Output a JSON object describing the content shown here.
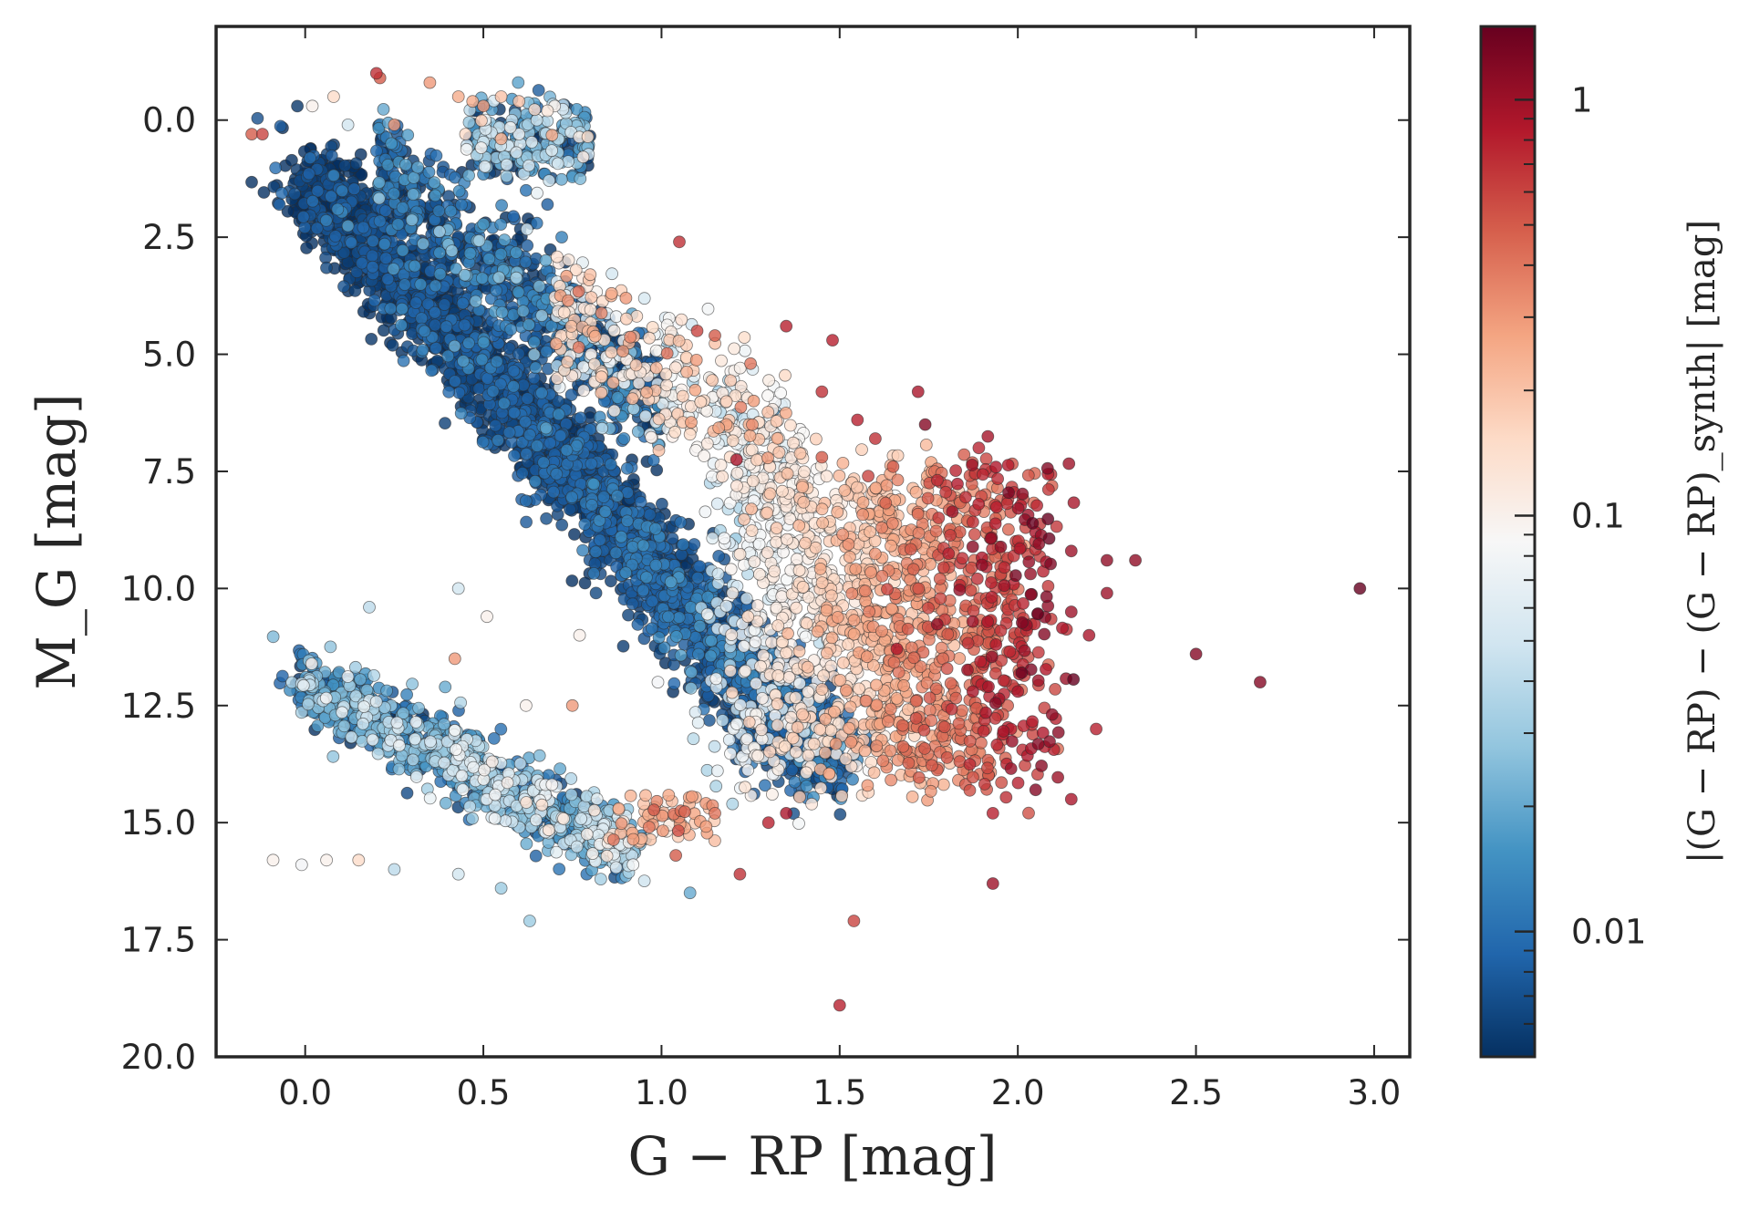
{
  "chart_data": {
    "type": "scatter",
    "title": "",
    "xlabel": "G − RP [mag]",
    "ylabel": "M_G [mag]",
    "xlim": [
      -0.25,
      3.1
    ],
    "ylim": [
      20.0,
      -2.0
    ],
    "y_inverted": true,
    "grid": false,
    "x_ticks": [
      "0.0",
      "0.5",
      "1.0",
      "1.5",
      "2.0",
      "2.5",
      "3.0"
    ],
    "y_ticks": [
      "0.0",
      "2.5",
      "5.0",
      "7.5",
      "10.0",
      "12.5",
      "15.0",
      "17.5",
      "20.0"
    ],
    "colorbar": {
      "label": "|(G − RP) − (G − RP)_synth| [mag]",
      "scale": "log",
      "range": [
        0.005,
        1.5
      ],
      "ticks": [
        "0.01",
        "0.1",
        "1"
      ],
      "colormap": "RdBu_r",
      "colors": [
        "#053061",
        "#2166ac",
        "#4393c3",
        "#92c5de",
        "#d1e5f0",
        "#f7f7f7",
        "#fddbc7",
        "#f4a582",
        "#d6604d",
        "#b2182b",
        "#67001f"
      ]
    },
    "series": [
      {
        "description_points": "representative [G-RP, M_G, |Δcolor|] samples",
        "points": [
          [
            -0.15,
            0.3,
            0.5
          ],
          [
            -0.12,
            0.3,
            0.6
          ],
          [
            0.2,
            -1.0,
            0.7
          ],
          [
            0.21,
            -0.9,
            0.5
          ],
          [
            0.35,
            -0.8,
            0.3
          ],
          [
            0.43,
            -0.5,
            0.25
          ],
          [
            0.47,
            -0.4,
            0.25
          ],
          [
            0.5,
            -0.3,
            0.3
          ],
          [
            0.55,
            -0.5,
            0.2
          ],
          [
            0.6,
            -0.4,
            0.2
          ],
          [
            0.68,
            -0.2,
            0.12
          ],
          [
            0.7,
            -0.3,
            0.1
          ],
          [
            0.02,
            -0.3,
            0.1
          ],
          [
            0.08,
            -0.5,
            0.15
          ],
          [
            0.12,
            0.1,
            0.05
          ],
          [
            0.25,
            0.1,
            0.3
          ],
          [
            0.45,
            0.3,
            0.15
          ],
          [
            0.55,
            0.4,
            0.25
          ],
          [
            0.6,
            0.3,
            0.08
          ],
          [
            0.65,
            0.0,
            0.05
          ],
          [
            0.7,
            0.5,
            0.03
          ],
          [
            0.72,
            0.9,
            0.02
          ],
          [
            0.75,
            0.8,
            0.01
          ],
          [
            0.62,
            1.5,
            0.01
          ],
          [
            0.68,
            1.8,
            0.008
          ],
          [
            0.65,
            2.2,
            0.01
          ],
          [
            0.72,
            2.5,
            0.012
          ],
          [
            0.76,
            3.2,
            0.15
          ],
          [
            0.8,
            3.3,
            0.2
          ],
          [
            0.86,
            3.7,
            0.25
          ],
          [
            0.9,
            3.8,
            0.3
          ],
          [
            1.05,
            2.6,
            0.7
          ],
          [
            1.1,
            4.5,
            0.6
          ],
          [
            1.15,
            4.6,
            0.5
          ],
          [
            1.25,
            5.2,
            0.4
          ],
          [
            1.35,
            4.4,
            0.8
          ],
          [
            1.48,
            4.7,
            0.8
          ],
          [
            1.45,
            5.8,
            0.7
          ],
          [
            1.55,
            6.4,
            0.8
          ],
          [
            1.6,
            6.8,
            0.7
          ],
          [
            1.72,
            5.8,
            0.9
          ],
          [
            1.74,
            6.5,
            1.2
          ],
          [
            1.45,
            7.2,
            0.5
          ],
          [
            1.58,
            7.6,
            0.6
          ],
          [
            1.65,
            7.4,
            0.5
          ],
          [
            1.8,
            7.8,
            0.6
          ],
          [
            1.89,
            8.2,
            0.8
          ],
          [
            2.05,
            8.8,
            0.9
          ],
          [
            2.15,
            9.2,
            1.0
          ],
          [
            2.25,
            9.4,
            1.1
          ],
          [
            2.33,
            9.4,
            1.1
          ],
          [
            2.25,
            10.1,
            1.0
          ],
          [
            2.15,
            10.5,
            1.0
          ],
          [
            2.2,
            11.0,
            0.9
          ],
          [
            2.5,
            11.4,
            1.2
          ],
          [
            2.68,
            12.0,
            1.2
          ],
          [
            2.96,
            10.0,
            1.5
          ],
          [
            2.22,
            13.0,
            0.8
          ],
          [
            2.15,
            14.5,
            0.9
          ],
          [
            2.05,
            14.3,
            1.2
          ],
          [
            1.93,
            14.8,
            0.8
          ],
          [
            1.93,
            16.3,
            1.0
          ],
          [
            1.54,
            17.1,
            0.6
          ],
          [
            1.5,
            18.9,
            0.8
          ],
          [
            1.22,
            16.1,
            0.7
          ],
          [
            1.04,
            15.7,
            0.5
          ],
          [
            1.15,
            14.8,
            0.4
          ],
          [
            1.35,
            14.8,
            0.9
          ],
          [
            1.3,
            15.0,
            0.8
          ],
          [
            0.95,
            14.6,
            0.2
          ],
          [
            0.88,
            14.7,
            0.25
          ],
          [
            0.75,
            12.5,
            0.3
          ],
          [
            0.62,
            12.5,
            0.1
          ],
          [
            0.43,
            10.0,
            0.05
          ],
          [
            0.51,
            10.6,
            0.1
          ],
          [
            0.77,
            11.0,
            0.1
          ],
          [
            0.18,
            10.4,
            0.04
          ],
          [
            0.42,
            11.5,
            0.3
          ],
          [
            -0.09,
            15.8,
            0.1
          ],
          [
            -0.01,
            15.9,
            0.08
          ],
          [
            0.06,
            15.8,
            0.1
          ],
          [
            0.15,
            15.8,
            0.15
          ],
          [
            0.25,
            16.0,
            0.04
          ],
          [
            0.43,
            16.1,
            0.05
          ],
          [
            0.55,
            16.4,
            0.03
          ],
          [
            0.63,
            17.1,
            0.03
          ],
          [
            0.79,
            16.1,
            0.01
          ],
          [
            1.08,
            16.5,
            0.02
          ],
          [
            0.99,
            12.0,
            0.08
          ],
          [
            1.42,
            13.8,
            0.12
          ],
          [
            1.53,
            13.0,
            0.15
          ],
          [
            1.67,
            13.4,
            0.2
          ],
          [
            1.8,
            13.5,
            0.3
          ],
          [
            1.91,
            13.0,
            0.5
          ],
          [
            2.0,
            12.2,
            0.9
          ]
        ]
      }
    ]
  }
}
